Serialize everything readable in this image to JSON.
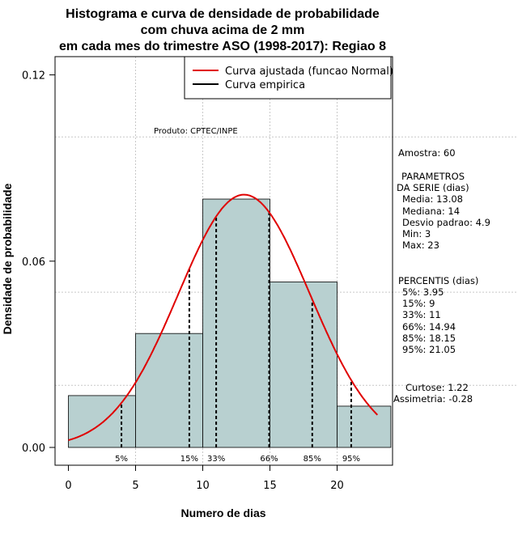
{
  "chart_data": {
    "type": "bar",
    "title_lines": [
      "Histograma e curva de densidade de probabilidade",
      "com chuva acima de 2 mm",
      "em cada mes do trimestre ASO (1998-2017): Regiao 8"
    ],
    "xlabel": "Numero de dias",
    "ylabel": "Densidade de probabilidade",
    "xlim": [
      -1,
      24
    ],
    "ylim": [
      0,
      0.12
    ],
    "x_ticks": [
      "0",
      "5",
      "10",
      "15",
      "20"
    ],
    "y_ticks": [
      "0.00",
      "0.06",
      "0.12"
    ],
    "grid": true,
    "bins": [
      {
        "x0": 0,
        "x1": 5,
        "density": 0.0167
      },
      {
        "x0": 5,
        "x1": 10,
        "density": 0.0367
      },
      {
        "x0": 10,
        "x1": 15,
        "density": 0.08
      },
      {
        "x0": 15,
        "x1": 20,
        "density": 0.0533
      },
      {
        "x0": 20,
        "x1": 24,
        "density": 0.0133
      }
    ],
    "bar_color": "#b8d0d0",
    "normal_curve": {
      "name": "Curva ajustada (funcao Normal)",
      "mean": 13.08,
      "sd": 4.9,
      "x_from": 0,
      "x_to": 23,
      "color": "#e00000"
    },
    "empirical_curve": {
      "name": "Curva empirica",
      "color": "#000000"
    },
    "legend_position": "top-right",
    "percentile_lines": [
      {
        "label": "5%",
        "x": 3.95
      },
      {
        "label": "15%",
        "x": 9
      },
      {
        "label": "33%",
        "x": 11
      },
      {
        "label": "66%",
        "x": 14.94
      },
      {
        "label": "85%",
        "x": 18.15
      },
      {
        "label": "95%",
        "x": 21.05
      }
    ],
    "annotation": "Produto: CPTEC/INPE"
  },
  "stats_panel": {
    "sample": "Amostra: 60",
    "params_title_1": "PARAMETROS",
    "params_title_2": "DA SERIE (dias)",
    "params": [
      "Media: 13.08",
      "Mediana: 14",
      "Desvio padrao: 4.9",
      "Min: 3",
      "Max: 23"
    ],
    "percentis_title": "PERCENTIS (dias)",
    "percentis": [
      "5%: 3.95",
      "15%: 9",
      "33%: 11",
      "66%: 14.94",
      "85%: 18.15",
      "95%: 21.05"
    ],
    "curtose": "Curtose: 1.22",
    "assimetria": "Assimetria: -0.28"
  }
}
